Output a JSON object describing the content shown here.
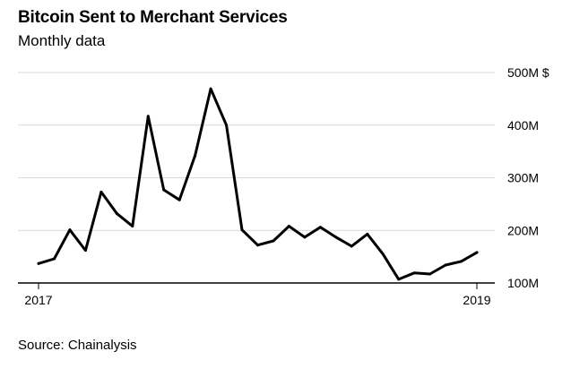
{
  "header": {
    "title": "Bitcoin Sent to Merchant Services",
    "subtitle": "Monthly data"
  },
  "footer": {
    "source": "Source: Chainalysis"
  },
  "colors": {
    "line": "#000000",
    "grid": "#d9d9d9",
    "axis": "#000000"
  },
  "chart_data": {
    "type": "line",
    "title": "Bitcoin Sent to Merchant Services",
    "subtitle": "Monthly data",
    "xlabel": "",
    "ylabel": "",
    "y_unit_label": "$",
    "grid": true,
    "ylim": [
      100,
      500
    ],
    "yticks": [
      100,
      200,
      300,
      400,
      500
    ],
    "ytick_labels": [
      "100M",
      "200M",
      "300M",
      "400M",
      "500M $"
    ],
    "xlim": [
      0,
      28
    ],
    "xticks": [
      {
        "x": 0,
        "label": "2017"
      },
      {
        "x": 28,
        "label": "2019"
      }
    ],
    "series": [
      {
        "values": [
          {
            "x": 0,
            "y": 137
          },
          {
            "x": 1,
            "y": 146
          },
          {
            "x": 2,
            "y": 201
          },
          {
            "x": 3,
            "y": 162
          },
          {
            "x": 4,
            "y": 273
          },
          {
            "x": 5,
            "y": 232
          },
          {
            "x": 6,
            "y": 208
          },
          {
            "x": 7,
            "y": 417
          },
          {
            "x": 8,
            "y": 277
          },
          {
            "x": 9,
            "y": 258
          },
          {
            "x": 10,
            "y": 342
          },
          {
            "x": 11,
            "y": 469
          },
          {
            "x": 12,
            "y": 400
          },
          {
            "x": 13,
            "y": 201
          },
          {
            "x": 14,
            "y": 172
          },
          {
            "x": 15,
            "y": 180
          },
          {
            "x": 16,
            "y": 208
          },
          {
            "x": 17,
            "y": 187
          },
          {
            "x": 18,
            "y": 206
          },
          {
            "x": 19,
            "y": 187
          },
          {
            "x": 20,
            "y": 170
          },
          {
            "x": 21,
            "y": 193
          },
          {
            "x": 22,
            "y": 155
          },
          {
            "x": 23,
            "y": 107
          },
          {
            "x": 24,
            "y": 119
          },
          {
            "x": 25,
            "y": 117
          },
          {
            "x": 26,
            "y": 134
          },
          {
            "x": 27,
            "y": 141
          },
          {
            "x": 28,
            "y": 158
          }
        ]
      }
    ]
  }
}
